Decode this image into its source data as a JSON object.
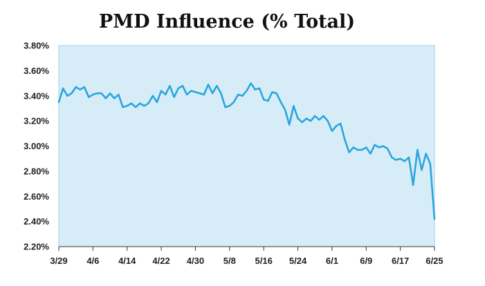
{
  "chart_data": {
    "type": "line",
    "title": "PMD Influence (% Total)",
    "xlabel": "",
    "ylabel": "",
    "x_tick_labels": [
      "3/29",
      "4/6",
      "4/14",
      "4/22",
      "4/30",
      "5/8",
      "5/16",
      "5/24",
      "6/1",
      "6/9",
      "6/17",
      "6/25"
    ],
    "y_tick_labels": [
      "3.80%",
      "3.60%",
      "3.40%",
      "3.20%",
      "3.00%",
      "2.80%",
      "2.60%",
      "2.40%",
      "2.20%"
    ],
    "ylim": [
      2.2,
      3.8
    ],
    "y_unit": "%",
    "grid": false,
    "legend": "none",
    "colors": {
      "line": "#2aa5dc",
      "plot_background": "#d6edf8",
      "plot_border": "#9fd2ec",
      "axis": "#333333"
    },
    "series": [
      {
        "values": [
          3.35,
          3.46,
          3.4,
          3.42,
          3.47,
          3.45,
          3.47,
          3.39,
          3.41,
          3.42,
          3.42,
          3.38,
          3.42,
          3.38,
          3.41,
          3.31,
          3.32,
          3.34,
          3.31,
          3.34,
          3.32,
          3.34,
          3.4,
          3.35,
          3.44,
          3.41,
          3.48,
          3.39,
          3.46,
          3.48,
          3.41,
          3.44,
          3.43,
          3.42,
          3.41,
          3.49,
          3.42,
          3.48,
          3.42,
          3.31,
          3.32,
          3.35,
          3.41,
          3.4,
          3.44,
          3.5,
          3.45,
          3.46,
          3.37,
          3.36,
          3.43,
          3.42,
          3.35,
          3.29,
          3.17,
          3.32,
          3.22,
          3.19,
          3.22,
          3.2,
          3.24,
          3.21,
          3.24,
          3.2,
          3.12,
          3.16,
          3.18,
          3.05,
          2.95,
          2.99,
          2.97,
          2.97,
          2.99,
          2.94,
          3.01,
          2.99,
          3.0,
          2.98,
          2.91,
          2.89,
          2.9,
          2.88,
          2.91,
          2.69,
          2.97,
          2.81,
          2.94,
          2.86,
          2.42
        ]
      }
    ]
  }
}
